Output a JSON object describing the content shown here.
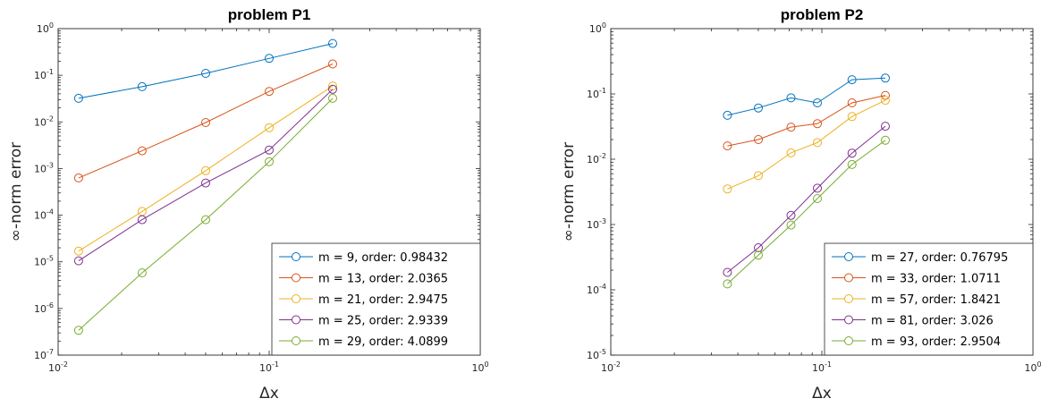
{
  "chart_data": [
    {
      "type": "line",
      "title": "problem P1",
      "xlabel": "Δx",
      "ylabel": "∞-norm error",
      "xscale": "log",
      "yscale": "log",
      "xlim": [
        0.01,
        1
      ],
      "ylim": [
        1e-07,
        1
      ],
      "legend": "bottom-right",
      "x": [
        0.0125,
        0.025,
        0.05,
        0.1,
        0.2
      ],
      "x_ticks": [
        {
          "base": "10",
          "exp": "-2"
        },
        {
          "base": "10",
          "exp": "-1"
        },
        {
          "base": "10",
          "exp": "0"
        }
      ],
      "y_ticks": [
        {
          "base": "10",
          "exp": "-7"
        },
        {
          "base": "10",
          "exp": "-6"
        },
        {
          "base": "10",
          "exp": "-5"
        },
        {
          "base": "10",
          "exp": "-4"
        },
        {
          "base": "10",
          "exp": "-3"
        },
        {
          "base": "10",
          "exp": "-2"
        },
        {
          "base": "10",
          "exp": "-1"
        },
        {
          "base": "10",
          "exp": "0"
        }
      ],
      "series": [
        {
          "name": "m = 9, order: 0.98432",
          "color": "#0072BD",
          "values": [
            0.032,
            0.057,
            0.11,
            0.23,
            0.48
          ]
        },
        {
          "name": "m = 13, order: 2.0365",
          "color": "#D95319",
          "values": [
            0.00063,
            0.0024,
            0.0097,
            0.045,
            0.175
          ]
        },
        {
          "name": "m = 21, order: 2.9475",
          "color": "#EDB120",
          "values": [
            1.7e-05,
            0.00012,
            0.0009,
            0.0075,
            0.059
          ]
        },
        {
          "name": "m = 25, order: 2.9339",
          "color": "#7E2F8E",
          "values": [
            1.05e-05,
            8e-05,
            0.00049,
            0.0025,
            0.05
          ]
        },
        {
          "name": "m = 29, order: 4.0899",
          "color": "#77AC30",
          "values": [
            3.4e-07,
            5.8e-06,
            8e-05,
            0.0014,
            0.032
          ]
        }
      ]
    },
    {
      "type": "line",
      "title": "problem P2",
      "xlabel": "Δx",
      "ylabel": "∞-norm error",
      "xscale": "log",
      "yscale": "log",
      "xlim": [
        0.01,
        1
      ],
      "ylim": [
        1e-05,
        1
      ],
      "legend": "bottom-right",
      "x": [
        0.0357,
        0.05,
        0.0714,
        0.0952,
        0.1389,
        0.2
      ],
      "x_ticks": [
        {
          "base": "10",
          "exp": "-2"
        },
        {
          "base": "10",
          "exp": "-1"
        },
        {
          "base": "10",
          "exp": "0"
        }
      ],
      "y_ticks": [
        {
          "base": "10",
          "exp": "-5"
        },
        {
          "base": "10",
          "exp": "-4"
        },
        {
          "base": "10",
          "exp": "-3"
        },
        {
          "base": "10",
          "exp": "-2"
        },
        {
          "base": "10",
          "exp": "-1"
        },
        {
          "base": "10",
          "exp": "0"
        }
      ],
      "series": [
        {
          "name": "m = 27, order: 0.76795",
          "color": "#0072BD",
          "values": [
            0.047,
            0.061,
            0.087,
            0.073,
            0.165,
            0.175
          ]
        },
        {
          "name": "m = 33, order: 1.0711",
          "color": "#D95319",
          "values": [
            0.016,
            0.02,
            0.031,
            0.035,
            0.073,
            0.095
          ]
        },
        {
          "name": "m = 57, order: 1.8421",
          "color": "#EDB120",
          "values": [
            0.0035,
            0.0056,
            0.0125,
            0.018,
            0.045,
            0.08
          ]
        },
        {
          "name": "m = 81, order: 3.026",
          "color": "#7E2F8E",
          "values": [
            0.000185,
            0.00044,
            0.00138,
            0.0036,
            0.0124,
            0.032
          ]
        },
        {
          "name": "m = 93, order: 2.9504",
          "color": "#77AC30",
          "values": [
            0.000123,
            0.00034,
            0.00098,
            0.0025,
            0.0083,
            0.0195
          ]
        }
      ]
    }
  ]
}
